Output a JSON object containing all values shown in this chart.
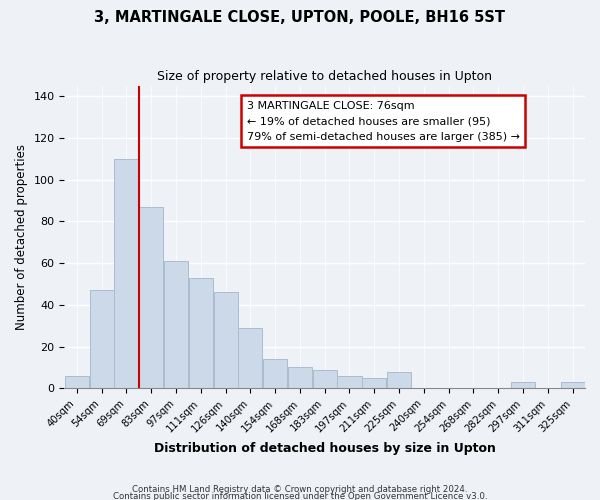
{
  "title": "3, MARTINGALE CLOSE, UPTON, POOLE, BH16 5ST",
  "subtitle": "Size of property relative to detached houses in Upton",
  "xlabel": "Distribution of detached houses by size in Upton",
  "ylabel": "Number of detached properties",
  "bar_color": "#ccd9e8",
  "bar_edge_color": "#aabcce",
  "bins": [
    "40sqm",
    "54sqm",
    "69sqm",
    "83sqm",
    "97sqm",
    "111sqm",
    "126sqm",
    "140sqm",
    "154sqm",
    "168sqm",
    "183sqm",
    "197sqm",
    "211sqm",
    "225sqm",
    "240sqm",
    "254sqm",
    "268sqm",
    "282sqm",
    "297sqm",
    "311sqm",
    "325sqm"
  ],
  "values": [
    6,
    47,
    110,
    87,
    61,
    53,
    46,
    29,
    14,
    10,
    9,
    6,
    5,
    8,
    0,
    0,
    0,
    0,
    3,
    0,
    3
  ],
  "vline_bin_idx": 2,
  "vline_color": "#cc0000",
  "annotation_title": "3 MARTINGALE CLOSE: 76sqm",
  "annotation_line1": "← 19% of detached houses are smaller (95)",
  "annotation_line2": "79% of semi-detached houses are larger (385) →",
  "annotation_box_color": "#ffffff",
  "annotation_box_edge": "#cc0000",
  "ylim": [
    0,
    145
  ],
  "yticks": [
    0,
    20,
    40,
    60,
    80,
    100,
    120,
    140
  ],
  "footer1": "Contains HM Land Registry data © Crown copyright and database right 2024.",
  "footer2": "Contains public sector information licensed under the Open Government Licence v3.0.",
  "background_color": "#eef2f7",
  "plot_bg_color": "#eef2f7",
  "figsize": [
    6.0,
    5.0
  ],
  "dpi": 100
}
